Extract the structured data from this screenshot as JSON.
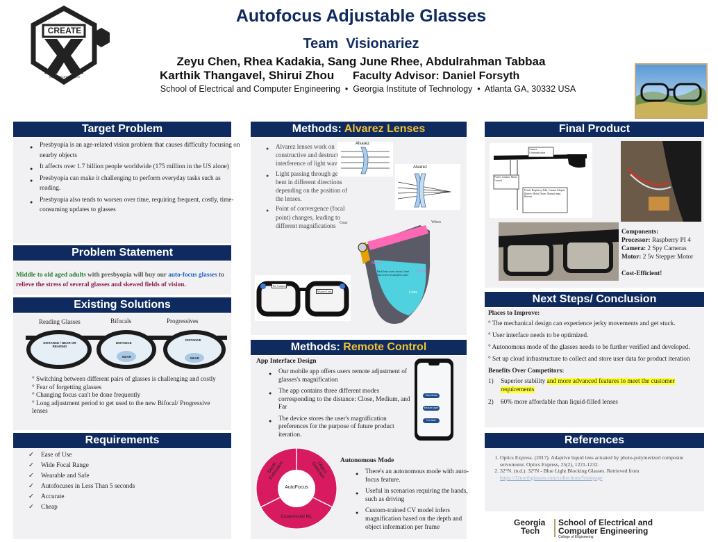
{
  "header": {
    "title": "Autofocus Adjustable Glasses",
    "team": "Team  Visionariez",
    "authors_line1": "Zeyu Chen, Rhea Kadakia, Sang June Rhee, Abdulrahman Tabbaa",
    "authors_line2": "Karthik Thangavel, Shirui Zhou",
    "advisor": "Faculty Advisor: Daniel Forsyth",
    "affiliation": "School of Electrical and Computer Engineering  •  Georgia Institute of Technology  •  Atlanta GA, 30332 USA",
    "logo_text": "CREATE",
    "logo_letter": "X",
    "logo_sub": "built at GEORGIA TECH"
  },
  "target_problem": {
    "heading": "Target Problem",
    "items": [
      "Presbyopia is an age-related vision problem that causes difficulty focusing on nearby objects",
      "It affects over 1.7 billion people worldwide (175 million in the US alone)",
      "Presbyopia can make it challenging to perform everyday tasks such as reading.",
      "Presbyopia also tends to worsen over time, requiring frequent, costly, time-consuming updates to glasses"
    ]
  },
  "problem_statement": {
    "heading": "Problem Statement",
    "part1": "Middle to old aged adults",
    "part2": " with presbyopia will buy our ",
    "part3": "auto-focus glasses",
    "part4": " to ",
    "part5": "relieve the stress of several glasses and skewed fields of vision."
  },
  "existing_solutions": {
    "heading": "Existing Solutions",
    "labels": [
      "Reading Glasses",
      "Bifocals",
      "Progressives"
    ],
    "lens1": "DISTANCE / NEAR OR READING",
    "lens2_top": "DISTANCE",
    "lens2_bottom": "NEAR",
    "lens3_top": "DISTANCE",
    "lens3_bottom": "NEAR",
    "items": [
      "° Switching between different pairs of glasses is challenging and costly",
      "° Fear of forgetting glasses",
      "° Changing focus can't be done frequently",
      "° Long adjustment period to get used to the new Bifocal/ Progressive lenses"
    ]
  },
  "requirements": {
    "heading": "Requirements",
    "items": [
      "Ease of Use",
      "Wide Focal Range",
      "Wearable and Safe",
      "Autofocuses in Less Than 5 seconds",
      "Accurate",
      "Cheap"
    ]
  },
  "methods_alvarez": {
    "heading_prefix": "Methods: ",
    "heading_highlight": "Alvarez Lenses",
    "items": [
      "Alvarez lenses work on constructive and destructive interference of light waves.",
      "Light passing through gets bent in different directions depending on the position of the lenses.",
      "Point of convergence (focal point) changes, leading to different magnifications"
    ],
    "diagram_label1": "Alvarez",
    "diagram_label2": "Alvarez",
    "cad_labels": [
      "Gear",
      "Wires",
      "Motor",
      "Rack",
      "Lens",
      "Back lens screw in/out; front lens screw-in and Zero onto"
    ],
    "photo_labels": [
      "Yes Camera",
      "Alvarez Lens"
    ]
  },
  "methods_remote": {
    "heading_prefix": "Methods: ",
    "heading_highlight": "Remote Control",
    "app_heading": "App Interface Design",
    "app_items": [
      "Our mobile app offers users remote adjustment of glasses's magnification",
      "The app contains three different modes corresponding to the distance: Close, Medium, and Far",
      "The device stores the user's magnification preferences for the purpose of future product iteration."
    ],
    "phone_buttons": [
      "Close Mode",
      "Medium Mode",
      "Far Mode"
    ],
    "auto_heading": "Autonomous Mode",
    "auto_items": [
      "There's an autonomous mode with auto-focus feature.",
      "Useful in scenarios requiring the hands, such as driving",
      "Custom-trained CV model infers magnification based on the depth and object information per frame"
    ],
    "ring_center": "AutoFocus",
    "ring_labels": [
      "Depth Estimation",
      "Object Detection",
      "Customized ML"
    ]
  },
  "final_product": {
    "heading": "Final Product",
    "diagram_labels": [
      "Camera Communication",
      "Power, Camera, Motor Control",
      "Pouch: Raspberry Pi4b, Camera Adapter, Battery, Motor Driver, Manual input Buttons"
    ],
    "components_heading": "Components:",
    "processor_label": "Processor:",
    "processor_value": " Raspberry PI 4",
    "camera_label": "Camera:",
    "camera_value": " 2 Spy Cameras",
    "motor_label": "Motor:",
    "motor_value": " 2 5v Stepper Motor",
    "cost": "Cost-Efficient!"
  },
  "next_steps": {
    "heading": "Next Steps/ Conclusion",
    "improve_heading": "Places to Improve:",
    "improve_items": [
      "° The mechanical design can experience jerky movements and get stuck.",
      "° User interface needs to be optimized.",
      "° Autonomous mode of the glasses needs to be further verified and developed.",
      "° Set up cloud infrastructure to collect and store user data for product iteration"
    ],
    "benefits_heading": "Benefits Over Competitors:",
    "benefit1_num": "1)",
    "benefit1_plain": "Superior stability ",
    "benefit1_highlight": "and more advanced features to meet the customer requirements",
    "benefit2_num": "2)",
    "benefit2": "60% more affordable than liquid-filled lenses"
  },
  "references": {
    "heading": "References",
    "items": [
      "Optics Express. (2017). Adaptive liquid lens actuated by photo-polymerized composite servomotor. Optics Express, 25(2), 1221-1232.",
      "32°N. (n.d.). 32°N - Blue Light Blocking Glasses. Retrieved from"
    ],
    "link": "https://32northglasses.com/collections/frontpage"
  },
  "footer": {
    "gt1": "Georgia",
    "gt2": "Tech",
    "school1": "School of Electrical and",
    "school2": "Computer Engineering",
    "college": "College of Engineering"
  },
  "colors": {
    "navy": "#0f2a5f",
    "gold": "#f1c232",
    "green": "#2e7d32",
    "blue_link": "#1f5fbf",
    "maroon": "#8b1a4a",
    "pink_ring": "#d81b60",
    "highlight": "#ffff33"
  }
}
